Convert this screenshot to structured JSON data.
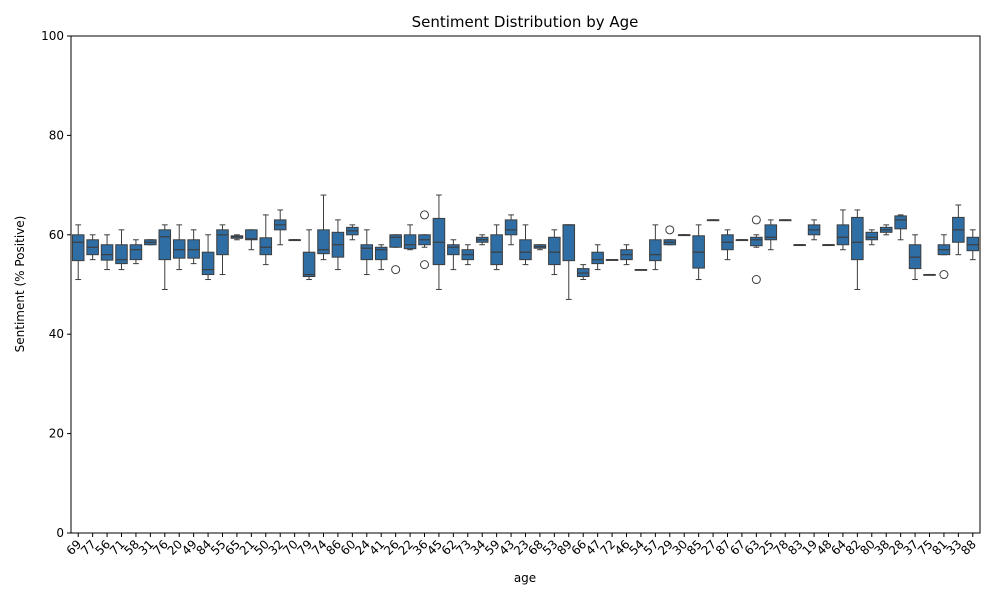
{
  "chart_data": {
    "type": "boxplot",
    "title": "Sentiment Distribution by Age",
    "xlabel": "age",
    "ylabel": "Sentiment (% Positive)",
    "ylim": [
      0,
      100
    ],
    "yticks": [
      0,
      20,
      40,
      60,
      80,
      100
    ],
    "grid": false,
    "legend": "none",
    "color": "#2f6ea4",
    "categories": [
      "69",
      "77",
      "56",
      "71",
      "58",
      "31",
      "76",
      "20",
      "49",
      "84",
      "55",
      "65",
      "21",
      "50",
      "32",
      "70",
      "79",
      "74",
      "86",
      "60",
      "24",
      "41",
      "26",
      "22",
      "36",
      "45",
      "62",
      "73",
      "34",
      "59",
      "43",
      "23",
      "68",
      "53",
      "89",
      "66",
      "47",
      "72",
      "46",
      "54",
      "57",
      "29",
      "30",
      "85",
      "27",
      "87",
      "67",
      "63",
      "25",
      "78",
      "83",
      "19",
      "48",
      "64",
      "82",
      "80",
      "38",
      "28",
      "37",
      "75",
      "81",
      "33",
      "88"
    ],
    "boxes": [
      {
        "age": "69",
        "min": 51,
        "q1": 54.8,
        "median": 58.5,
        "q3": 60,
        "max": 62,
        "outliers": []
      },
      {
        "age": "77",
        "min": 55,
        "q1": 56,
        "median": 57.5,
        "q3": 59,
        "max": 60,
        "outliers": []
      },
      {
        "age": "56",
        "min": 53,
        "q1": 54.9,
        "median": 56,
        "q3": 58,
        "max": 60,
        "outliers": []
      },
      {
        "age": "71",
        "min": 53,
        "q1": 54.2,
        "median": 55,
        "q3": 58,
        "max": 61,
        "outliers": []
      },
      {
        "age": "58",
        "min": 54.2,
        "q1": 55,
        "median": 57,
        "q3": 58,
        "max": 59,
        "outliers": []
      },
      {
        "age": "31",
        "min": 58,
        "q1": 58,
        "median": 58.5,
        "q3": 59,
        "max": 59,
        "outliers": []
      },
      {
        "age": "76",
        "min": 49,
        "q1": 55,
        "median": 59.6,
        "q3": 61,
        "max": 62,
        "outliers": []
      },
      {
        "age": "20",
        "min": 53,
        "q1": 55.3,
        "median": 57,
        "q3": 59,
        "max": 62,
        "outliers": []
      },
      {
        "age": "49",
        "min": 54.2,
        "q1": 55.3,
        "median": 57,
        "q3": 59,
        "max": 61,
        "outliers": []
      },
      {
        "age": "84",
        "min": 51,
        "q1": 52,
        "median": 53,
        "q3": 56.5,
        "max": 60,
        "outliers": []
      },
      {
        "age": "55",
        "min": 52,
        "q1": 56,
        "median": 60,
        "q3": 61,
        "max": 62,
        "outliers": []
      },
      {
        "age": "65",
        "min": 59,
        "q1": 59.3,
        "median": 59.6,
        "q3": 59.8,
        "max": 60,
        "outliers": []
      },
      {
        "age": "21",
        "min": 57,
        "q1": 59,
        "median": 59.2,
        "q3": 61,
        "max": 61,
        "outliers": []
      },
      {
        "age": "50",
        "min": 54,
        "q1": 56,
        "median": 57.5,
        "q3": 59.4,
        "max": 64,
        "outliers": []
      },
      {
        "age": "32",
        "min": 58,
        "q1": 61,
        "median": 62,
        "q3": 63,
        "max": 65,
        "outliers": []
      },
      {
        "age": "70",
        "min": 59,
        "q1": 59,
        "median": 59,
        "q3": 59,
        "max": 59,
        "outliers": []
      },
      {
        "age": "79",
        "min": 51,
        "q1": 51.6,
        "median": 52,
        "q3": 56.5,
        "max": 61,
        "outliers": []
      },
      {
        "age": "74",
        "min": 55,
        "q1": 56.2,
        "median": 57,
        "q3": 61,
        "max": 68,
        "outliers": []
      },
      {
        "age": "86",
        "min": 53,
        "q1": 55.5,
        "median": 58,
        "q3": 60.5,
        "max": 63,
        "outliers": []
      },
      {
        "age": "60",
        "min": 59,
        "q1": 60,
        "median": 60.8,
        "q3": 61.5,
        "max": 62,
        "outliers": []
      },
      {
        "age": "24",
        "min": 52,
        "q1": 55,
        "median": 57.3,
        "q3": 58,
        "max": 61,
        "outliers": []
      },
      {
        "age": "41",
        "min": 53,
        "q1": 55,
        "median": 57,
        "q3": 57.5,
        "max": 58,
        "outliers": []
      },
      {
        "age": "26",
        "min": 57.5,
        "q1": 57.5,
        "median": 59.5,
        "q3": 60,
        "max": 60,
        "outliers": [
          53
        ]
      },
      {
        "age": "22",
        "min": 57,
        "q1": 57.2,
        "median": 58,
        "q3": 60,
        "max": 62,
        "outliers": []
      },
      {
        "age": "36",
        "min": 57.5,
        "q1": 58,
        "median": 59,
        "q3": 60,
        "max": 60,
        "outliers": [
          54,
          64
        ]
      },
      {
        "age": "45",
        "min": 49,
        "q1": 54,
        "median": 58.5,
        "q3": 63.3,
        "max": 68,
        "outliers": []
      },
      {
        "age": "62",
        "min": 53,
        "q1": 56,
        "median": 57.5,
        "q3": 58,
        "max": 59,
        "outliers": []
      },
      {
        "age": "73",
        "min": 54,
        "q1": 55,
        "median": 56,
        "q3": 57,
        "max": 58,
        "outliers": []
      },
      {
        "age": "34",
        "min": 58,
        "q1": 58.5,
        "median": 59,
        "q3": 59.5,
        "max": 60,
        "outliers": []
      },
      {
        "age": "59",
        "min": 53,
        "q1": 54,
        "median": 56.5,
        "q3": 60,
        "max": 62,
        "outliers": []
      },
      {
        "age": "43",
        "min": 58,
        "q1": 60,
        "median": 61,
        "q3": 63,
        "max": 64,
        "outliers": []
      },
      {
        "age": "23",
        "min": 54,
        "q1": 55,
        "median": 56.5,
        "q3": 59,
        "max": 62,
        "outliers": []
      },
      {
        "age": "68",
        "min": 57,
        "q1": 57.3,
        "median": 57.6,
        "q3": 58,
        "max": 58,
        "outliers": []
      },
      {
        "age": "53",
        "min": 52,
        "q1": 54,
        "median": 56.5,
        "q3": 59.5,
        "max": 61,
        "outliers": []
      },
      {
        "age": "89",
        "min": 47,
        "q1": 54.8,
        "median": 62,
        "q3": 62,
        "max": 62,
        "outliers": []
      },
      {
        "age": "66",
        "min": 51,
        "q1": 51.6,
        "median": 52.3,
        "q3": 53.2,
        "max": 54,
        "outliers": []
      },
      {
        "age": "47",
        "min": 53,
        "q1": 54.2,
        "median": 55,
        "q3": 56.5,
        "max": 58,
        "outliers": []
      },
      {
        "age": "72",
        "min": 55,
        "q1": 55,
        "median": 55,
        "q3": 55,
        "max": 55,
        "outliers": []
      },
      {
        "age": "46",
        "min": 54,
        "q1": 55,
        "median": 56,
        "q3": 57,
        "max": 58,
        "outliers": []
      },
      {
        "age": "54",
        "min": 53,
        "q1": 53,
        "median": 53,
        "q3": 53,
        "max": 53,
        "outliers": []
      },
      {
        "age": "57",
        "min": 53,
        "q1": 54.8,
        "median": 56,
        "q3": 59,
        "max": 62,
        "outliers": []
      },
      {
        "age": "29",
        "min": 58,
        "q1": 58,
        "median": 58.5,
        "q3": 59,
        "max": 59,
        "outliers": [
          61
        ]
      },
      {
        "age": "30",
        "min": 60,
        "q1": 60,
        "median": 60,
        "q3": 60,
        "max": 60,
        "outliers": []
      },
      {
        "age": "85",
        "min": 51,
        "q1": 53.3,
        "median": 56.5,
        "q3": 59.8,
        "max": 62,
        "outliers": []
      },
      {
        "age": "27",
        "min": 63,
        "q1": 63,
        "median": 63,
        "q3": 63,
        "max": 63,
        "outliers": []
      },
      {
        "age": "87",
        "min": 55,
        "q1": 57,
        "median": 58.5,
        "q3": 60,
        "max": 61,
        "outliers": []
      },
      {
        "age": "67",
        "min": 59,
        "q1": 59,
        "median": 59,
        "q3": 59,
        "max": 59,
        "outliers": []
      },
      {
        "age": "63",
        "min": 57.5,
        "q1": 57.8,
        "median": 59,
        "q3": 59.5,
        "max": 60,
        "outliers": [
          51,
          63
        ]
      },
      {
        "age": "25",
        "min": 57,
        "q1": 59,
        "median": 59.5,
        "q3": 62,
        "max": 63,
        "outliers": []
      },
      {
        "age": "78",
        "min": 63,
        "q1": 63,
        "median": 63,
        "q3": 63,
        "max": 63,
        "outliers": []
      },
      {
        "age": "83",
        "min": 58,
        "q1": 58,
        "median": 58,
        "q3": 58,
        "max": 58,
        "outliers": []
      },
      {
        "age": "19",
        "min": 59,
        "q1": 60,
        "median": 61,
        "q3": 62,
        "max": 63,
        "outliers": []
      },
      {
        "age": "48",
        "min": 58,
        "q1": 58,
        "median": 58,
        "q3": 58,
        "max": 58,
        "outliers": []
      },
      {
        "age": "64",
        "min": 57,
        "q1": 58,
        "median": 59.5,
        "q3": 62,
        "max": 65,
        "outliers": []
      },
      {
        "age": "82",
        "min": 49,
        "q1": 55,
        "median": 58.5,
        "q3": 63.5,
        "max": 65,
        "outliers": []
      },
      {
        "age": "80",
        "min": 58,
        "q1": 59,
        "median": 59.5,
        "q3": 60.5,
        "max": 61,
        "outliers": []
      },
      {
        "age": "38",
        "min": 60,
        "q1": 60.5,
        "median": 61,
        "q3": 61.5,
        "max": 62,
        "outliers": []
      },
      {
        "age": "28",
        "min": 59,
        "q1": 61.2,
        "median": 63,
        "q3": 63.8,
        "max": 64,
        "outliers": []
      },
      {
        "age": "37",
        "min": 51,
        "q1": 53.2,
        "median": 55.5,
        "q3": 58,
        "max": 60,
        "outliers": []
      },
      {
        "age": "75",
        "min": 52,
        "q1": 52,
        "median": 52,
        "q3": 52,
        "max": 52,
        "outliers": []
      },
      {
        "age": "81",
        "min": 56,
        "q1": 56,
        "median": 57,
        "q3": 58,
        "max": 60,
        "outliers": [
          52
        ]
      },
      {
        "age": "33",
        "min": 56,
        "q1": 58.5,
        "median": 61,
        "q3": 63.5,
        "max": 66,
        "outliers": []
      },
      {
        "age": "88",
        "min": 55,
        "q1": 56.8,
        "median": 58,
        "q3": 59.5,
        "max": 61,
        "outliers": []
      }
    ]
  }
}
